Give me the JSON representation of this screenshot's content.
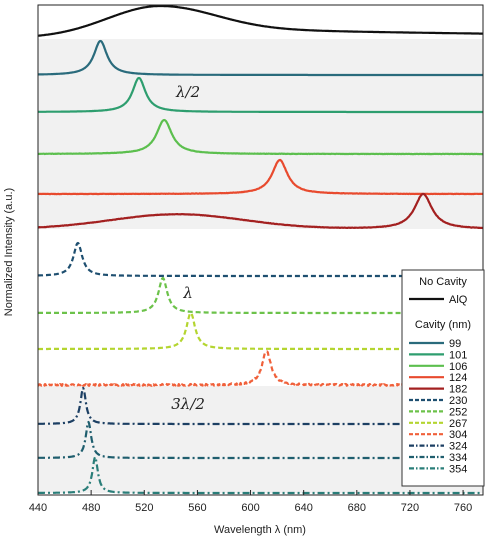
{
  "chart_data": {
    "type": "line",
    "xlabel": "Wavelength λ (nm)",
    "ylabel": "Normalized Intensity (a.u.)",
    "xlim": [
      440,
      775
    ],
    "xticks": [
      440,
      480,
      520,
      560,
      600,
      640,
      680,
      720,
      760
    ],
    "grid": false,
    "legend_position": "right",
    "legend_header_1": "No Cavity",
    "legend_header_2": "Cavity (nm)",
    "annotations": [
      {
        "text": "λ/2",
        "x": 553,
        "row": 3
      },
      {
        "text": "λ",
        "x": 553,
        "row": 8
      },
      {
        "text": "3λ/2",
        "x": 553,
        "row": 11
      }
    ],
    "bands": [
      {
        "rows": [
          1,
          5
        ]
      },
      {
        "rows": [
          10,
          12
        ]
      }
    ],
    "series": [
      {
        "name": "AlQ",
        "group": "none",
        "color": "#111111",
        "style": "solid",
        "peaks": [
          {
            "x": 532,
            "h": 1.0,
            "w": 40,
            "type": "g"
          }
        ],
        "right_base": 0.35,
        "noise": 0
      },
      {
        "name": "99",
        "group": "half",
        "color": "#2a6b7c",
        "style": "solid",
        "peaks": [
          {
            "x": 487,
            "h": 1.0,
            "w": 6,
            "type": "l"
          }
        ],
        "right_base": 0,
        "noise": 0
      },
      {
        "name": "101",
        "group": "half",
        "color": "#2e9e6f",
        "style": "solid",
        "peaks": [
          {
            "x": 516,
            "h": 1.0,
            "w": 6,
            "type": "l"
          }
        ],
        "right_base": 0,
        "noise": 0
      },
      {
        "name": "106",
        "group": "half",
        "color": "#5cbf4e",
        "style": "solid",
        "peaks": [
          {
            "x": 535,
            "h": 1.0,
            "w": 7,
            "type": "l"
          }
        ],
        "right_base": 0,
        "noise": 0.01
      },
      {
        "name": "124",
        "group": "half",
        "color": "#e84a2e",
        "style": "solid",
        "peaks": [
          {
            "x": 622,
            "h": 1.0,
            "w": 7,
            "type": "l"
          }
        ],
        "right_base": 0,
        "noise": 0.01
      },
      {
        "name": "182",
        "group": "half",
        "color": "#a32020",
        "style": "solid",
        "peaks": [
          {
            "x": 730,
            "h": 1.0,
            "w": 8,
            "type": "l"
          },
          {
            "x": 545,
            "h": 0.42,
            "w": 50,
            "type": "g"
          }
        ],
        "right_base": 0,
        "noise": 0.01
      },
      {
        "name": "230",
        "group": "full",
        "color": "#1e4f70",
        "style": "dash",
        "peaks": [
          {
            "x": 470,
            "h": 1.0,
            "w": 4,
            "type": "l"
          }
        ],
        "right_base": 0,
        "noise": 0
      },
      {
        "name": "252",
        "group": "full",
        "color": "#6cc24a",
        "style": "dash",
        "peaks": [
          {
            "x": 534,
            "h": 1.0,
            "w": 4,
            "type": "l"
          }
        ],
        "right_base": 0,
        "noise": 0
      },
      {
        "name": "267",
        "group": "full",
        "color": "#b4d530",
        "style": "dash",
        "peaks": [
          {
            "x": 555,
            "h": 1.0,
            "w": 4,
            "type": "l"
          }
        ],
        "right_base": 0,
        "noise": 0
      },
      {
        "name": "304",
        "group": "full",
        "color": "#f0603a",
        "style": "dash",
        "peaks": [
          {
            "x": 612,
            "h": 1.0,
            "w": 4,
            "type": "l"
          }
        ],
        "right_base": 0,
        "noise": 0.05
      },
      {
        "name": "324",
        "group": "threehalf",
        "color": "#1c3f63",
        "style": "dashdot",
        "peaks": [
          {
            "x": 474,
            "h": 1.0,
            "w": 2.5,
            "type": "l"
          }
        ],
        "right_base": 0,
        "noise": 0
      },
      {
        "name": "334",
        "group": "threehalf",
        "color": "#1f5e6e",
        "style": "dashdot",
        "peaks": [
          {
            "x": 478,
            "h": 1.0,
            "w": 2.5,
            "type": "l"
          }
        ],
        "right_base": 0,
        "noise": 0
      },
      {
        "name": "354",
        "group": "threehalf",
        "color": "#2a7e79",
        "style": "dashdot",
        "peaks": [
          {
            "x": 483,
            "h": 1.0,
            "w": 2.5,
            "type": "l"
          }
        ],
        "right_base": 0,
        "noise": 0
      }
    ]
  }
}
